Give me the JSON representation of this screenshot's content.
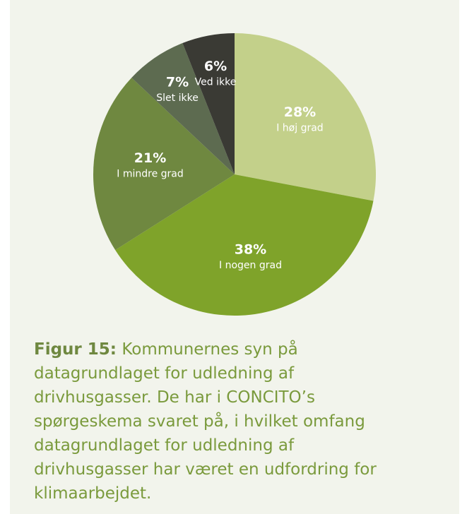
{
  "chart_data": {
    "type": "pie",
    "categories": [
      "I høj grad",
      "I nogen grad",
      "I mindre grad",
      "Slet ikke",
      "Ved ikke"
    ],
    "values": [
      28,
      38,
      21,
      7,
      6
    ],
    "value_labels": [
      "28%",
      "38%",
      "21%",
      "7%",
      "6%"
    ],
    "colors": [
      "#c3d08a",
      "#7fa32a",
      "#6f8840",
      "#5d6b50",
      "#3a3a34"
    ]
  },
  "caption": {
    "label": "Figur 15:",
    "text": "Kommunernes syn på datagrundlaget for udledning af drivhusgasser. De har i CONCITO’s spørgeskema svaret på, i hvilket omfang datagrundlaget for udledning af drivhusgasser har været en udfordring for klimaarbejdet."
  }
}
